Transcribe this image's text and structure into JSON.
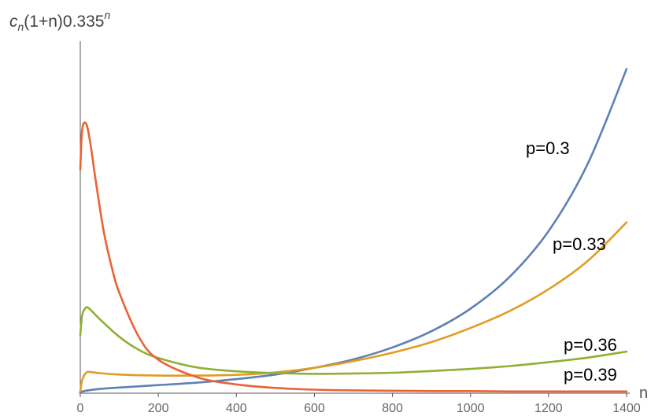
{
  "chart_data": {
    "type": "line",
    "title": "",
    "ylabel": {
      "base": "c",
      "sub": "n",
      "mid": "(1+n)0.335",
      "sup": "n"
    },
    "xlabel": "n",
    "xlim": [
      0,
      1400
    ],
    "ylim": [
      0,
      1.0
    ],
    "xticks": [
      "0",
      "200",
      "400",
      "600",
      "800",
      "1000",
      "1200",
      "1400"
    ],
    "y_tick_labels": false,
    "grid": false,
    "series": [
      {
        "name": "p=0.3",
        "color": "#5E81B5",
        "x": [
          0,
          5,
          50,
          100,
          200,
          300,
          400,
          500,
          600,
          700,
          800,
          900,
          1000,
          1100,
          1200,
          1300,
          1400
        ],
        "y": [
          0.0,
          0.005,
          0.012,
          0.016,
          0.023,
          0.03,
          0.04,
          0.053,
          0.072,
          0.096,
          0.13,
          0.176,
          0.24,
          0.33,
          0.46,
          0.65,
          0.92
        ]
      },
      {
        "name": "p=0.33",
        "color": "#E19C24",
        "x": [
          0,
          5,
          15,
          25,
          50,
          100,
          200,
          300,
          400,
          500,
          600,
          700,
          800,
          900,
          1000,
          1100,
          1200,
          1300,
          1400
        ],
        "y": [
          0.005,
          0.038,
          0.058,
          0.06,
          0.057,
          0.053,
          0.05,
          0.05,
          0.052,
          0.059,
          0.072,
          0.091,
          0.115,
          0.145,
          0.185,
          0.233,
          0.295,
          0.375,
          0.485
        ]
      },
      {
        "name": "p=0.36",
        "color": "#8FB032",
        "x": [
          0,
          5,
          15,
          25,
          50,
          100,
          150,
          200,
          300,
          400,
          500,
          600,
          700,
          800,
          900,
          1000,
          1100,
          1200,
          1300,
          1400
        ],
        "y": [
          0.165,
          0.222,
          0.243,
          0.238,
          0.21,
          0.16,
          0.123,
          0.1,
          0.073,
          0.062,
          0.057,
          0.055,
          0.056,
          0.058,
          0.063,
          0.069,
          0.077,
          0.088,
          0.101,
          0.118
        ]
      },
      {
        "name": "p=0.39",
        "color": "#EB6235",
        "x": [
          0,
          5,
          15,
          25,
          40,
          60,
          80,
          100,
          150,
          200,
          300,
          400,
          500,
          600,
          700,
          800,
          900,
          1000,
          1100,
          1200,
          1300,
          1400
        ],
        "y": [
          0.635,
          0.75,
          0.765,
          0.715,
          0.6,
          0.46,
          0.36,
          0.285,
          0.16,
          0.095,
          0.045,
          0.025,
          0.015,
          0.01,
          0.008,
          0.007,
          0.006,
          0.006,
          0.005,
          0.005,
          0.005,
          0.005
        ]
      }
    ]
  }
}
